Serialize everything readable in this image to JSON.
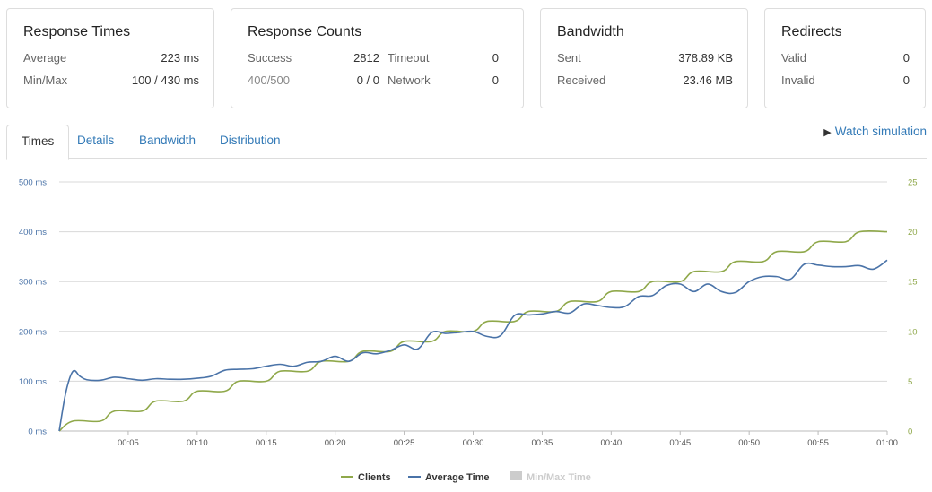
{
  "cards": {
    "response_times": {
      "title": "Response Times",
      "average_label": "Average",
      "average_value": "223 ms",
      "minmax_label": "Min/Max",
      "minmax_value": "100 / 430 ms"
    },
    "response_counts": {
      "title": "Response Counts",
      "success_label": "Success",
      "success_value": "2812",
      "timeout_label": "Timeout",
      "timeout_value": "0",
      "status_label": "400/500",
      "status_value": "0 / 0",
      "network_label": "Network",
      "network_value": "0"
    },
    "bandwidth": {
      "title": "Bandwidth",
      "sent_label": "Sent",
      "sent_value": "378.89 KB",
      "received_label": "Received",
      "received_value": "23.46 MB"
    },
    "redirects": {
      "title": "Redirects",
      "valid_label": "Valid",
      "valid_value": "0",
      "invalid_label": "Invalid",
      "invalid_value": "0"
    }
  },
  "tabs": [
    "Times",
    "Details",
    "Bandwidth",
    "Distribution"
  ],
  "active_tab": "Times",
  "watch_simulation": "Watch simulation",
  "colors": {
    "clients": "#8fa84a",
    "average_time": "#4a73a8",
    "minmax": "#cccccc",
    "link": "#337ab7"
  },
  "chart_data": {
    "type": "line",
    "x_ticks": [
      "00:05",
      "00:10",
      "00:15",
      "00:20",
      "00:25",
      "00:30",
      "00:35",
      "00:40",
      "00:45",
      "00:50",
      "00:55",
      "01:00"
    ],
    "x_range": [
      0,
      60
    ],
    "y_left": {
      "ticks": [
        "0 ms",
        "100 ms",
        "200 ms",
        "300 ms",
        "400 ms",
        "500 ms"
      ],
      "range": [
        0,
        500
      ]
    },
    "y_right": {
      "ticks": [
        "0",
        "5",
        "10",
        "15",
        "20",
        "25"
      ],
      "range": [
        0,
        25
      ]
    },
    "grid": true,
    "legend_position": "bottom-center",
    "series": [
      {
        "name": "Clients",
        "axis": "right",
        "x": [
          0,
          1,
          3,
          4,
          6,
          7,
          9,
          10,
          12,
          13,
          15,
          16,
          18,
          19,
          21,
          22,
          24,
          25,
          27,
          28,
          30,
          31,
          33,
          34,
          36,
          37,
          39,
          40,
          42,
          43,
          45,
          46,
          48,
          49,
          51,
          52,
          54,
          55,
          57,
          58,
          60
        ],
        "y": [
          0,
          1,
          1,
          2,
          2,
          3,
          3,
          4,
          4,
          5,
          5,
          6,
          6,
          7,
          7,
          8,
          8,
          9,
          9,
          10,
          10,
          11,
          11,
          12,
          12,
          13,
          13,
          14,
          14,
          15,
          15,
          16,
          16,
          17,
          17,
          18,
          18,
          19,
          19,
          20,
          20
        ]
      },
      {
        "name": "Average Time",
        "axis": "left",
        "x": [
          0,
          0.5,
          1,
          1.5,
          2,
          3,
          4,
          5,
          6,
          7,
          8,
          9,
          10,
          11,
          12,
          13,
          14,
          15,
          16,
          17,
          18,
          19,
          20,
          21,
          22,
          23,
          24,
          25,
          26,
          27,
          28,
          29,
          30,
          31,
          32,
          33,
          34,
          35,
          36,
          37,
          38,
          39,
          40,
          41,
          42,
          43,
          44,
          45,
          46,
          47,
          48,
          49,
          50,
          51,
          52,
          53,
          54,
          55,
          56,
          57,
          58,
          59,
          60
        ],
        "y": [
          0,
          80,
          120,
          110,
          103,
          102,
          108,
          105,
          102,
          105,
          104,
          104,
          106,
          110,
          122,
          124,
          125,
          130,
          134,
          130,
          138,
          140,
          150,
          140,
          157,
          155,
          162,
          173,
          165,
          198,
          196,
          198,
          200,
          190,
          192,
          232,
          233,
          235,
          240,
          237,
          255,
          252,
          248,
          250,
          270,
          272,
          292,
          295,
          280,
          295,
          280,
          278,
          300,
          310,
          310,
          305,
          335,
          333,
          330,
          330,
          332,
          325,
          343
        ]
      },
      {
        "name": "Min/Max Time",
        "axis": "left",
        "hidden": true
      }
    ]
  }
}
